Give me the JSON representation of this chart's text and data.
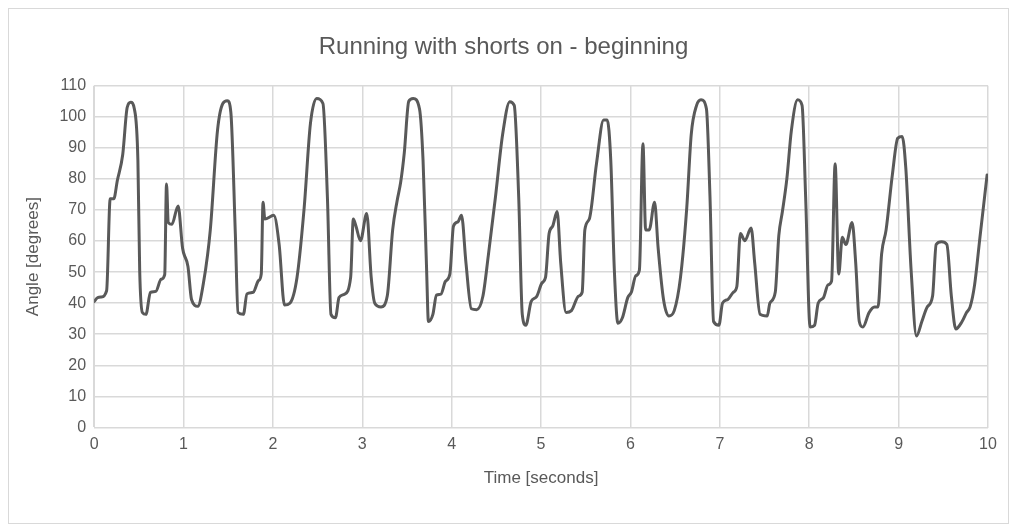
{
  "chart_data": {
    "type": "line",
    "title": "Running with shorts on - beginning",
    "xlabel": "Time [seconds]",
    "ylabel": "Angle [degrees]",
    "x": [
      0,
      0.04,
      0.08,
      0.14,
      0.18,
      0.22,
      0.26,
      0.32,
      0.37,
      0.41,
      0.45,
      0.49,
      0.51,
      0.54,
      0.58,
      0.63,
      0.69,
      0.75,
      0.79,
      0.81,
      0.83,
      0.87,
      0.94,
      0.99,
      1.05,
      1.09,
      1.16,
      1.22,
      1.3,
      1.38,
      1.44,
      1.49,
      1.53,
      1.58,
      1.61,
      1.67,
      1.71,
      1.78,
      1.84,
      1.87,
      1.89,
      1.91,
      2.01,
      2.07,
      2.13,
      2.19,
      2.27,
      2.35,
      2.42,
      2.49,
      2.56,
      2.61,
      2.65,
      2.7,
      2.74,
      2.8,
      2.87,
      2.9,
      2.93,
      2.98,
      3.05,
      3.1,
      3.14,
      3.21,
      3.28,
      3.34,
      3.39,
      3.43,
      3.47,
      3.52,
      3.57,
      3.64,
      3.68,
      3.72,
      3.74,
      3.79,
      3.83,
      3.88,
      3.93,
      3.98,
      4.02,
      4.07,
      4.11,
      4.16,
      4.22,
      4.28,
      4.35,
      4.41,
      4.49,
      4.57,
      4.65,
      4.7,
      4.75,
      4.79,
      4.83,
      4.89,
      4.95,
      5.01,
      5.05,
      5.09,
      5.13,
      5.18,
      5.22,
      5.28,
      5.34,
      5.42,
      5.46,
      5.49,
      5.54,
      5.62,
      5.7,
      5.74,
      5.78,
      5.82,
      5.86,
      5.91,
      5.97,
      6.01,
      6.06,
      6.1,
      6.14,
      6.17,
      6.21,
      6.27,
      6.31,
      6.37,
      6.43,
      6.49,
      6.56,
      6.63,
      6.68,
      6.74,
      6.79,
      6.85,
      6.89,
      6.93,
      6.99,
      7.03,
      7.09,
      7.15,
      7.19,
      7.23,
      7.28,
      7.35,
      7.39,
      7.45,
      7.53,
      7.56,
      7.62,
      7.66,
      7.7,
      7.75,
      7.8,
      7.87,
      7.92,
      7.96,
      8.01,
      8.06,
      8.1,
      8.16,
      8.21,
      8.25,
      8.29,
      8.33,
      8.37,
      8.41,
      8.48,
      8.52,
      8.56,
      8.6,
      8.67,
      8.73,
      8.77,
      8.81,
      8.86,
      8.93,
      8.99,
      9.04,
      9.08,
      9.14,
      9.2,
      9.26,
      9.32,
      9.38,
      9.42,
      9.48,
      9.54,
      9.59,
      9.64,
      9.71,
      9.76,
      9.8,
      9.85,
      9.91,
      9.99
    ],
    "values": [
      40.5,
      41.8,
      42,
      44,
      73.6,
      73.6,
      79.5,
      87.8,
      103,
      104.7,
      102.6,
      86,
      50.6,
      37,
      36.4,
      43.5,
      43.8,
      47.7,
      49.2,
      78.4,
      66,
      65.4,
      71.3,
      57.7,
      51.8,
      41.2,
      39,
      45.9,
      63.6,
      95.5,
      104.3,
      105.2,
      101.4,
      62.4,
      37,
      36.4,
      43,
      43.5,
      47.3,
      49.4,
      72.5,
      67.1,
      68.3,
      58.9,
      39.4,
      40,
      48.3,
      70.7,
      97.8,
      105.9,
      104.3,
      74.2,
      36.4,
      35.3,
      41.8,
      42.9,
      48.3,
      67.1,
      64.8,
      60.1,
      68.9,
      48.3,
      40,
      38.8,
      42.4,
      63.6,
      73,
      79,
      88.4,
      105,
      105.9,
      102.6,
      86,
      50.6,
      34.1,
      36.4,
      42.6,
      42.9,
      47,
      49.4,
      64.8,
      66.2,
      68.3,
      53,
      38.2,
      37.9,
      42.3,
      55.3,
      74.2,
      94.3,
      104.9,
      103.7,
      74.2,
      36.4,
      32.9,
      40.6,
      42.1,
      46.5,
      48.3,
      62.4,
      64.8,
      69.5,
      53,
      37,
      37.6,
      42.3,
      43.5,
      63.6,
      67.1,
      84.9,
      99,
      99,
      86,
      50.6,
      33.5,
      35.3,
      41.8,
      43.5,
      48.8,
      50.6,
      91.3,
      63.6,
      63.6,
      72.5,
      57.7,
      41.2,
      35.9,
      37.6,
      48.3,
      70.7,
      94.3,
      103.7,
      105.5,
      102.6,
      74.2,
      34.1,
      32.9,
      40,
      41.2,
      43.5,
      45.3,
      62.4,
      60.1,
      64.2,
      53,
      36.4,
      35.9,
      40,
      43.5,
      61.8,
      69.5,
      80.1,
      95.5,
      105.5,
      103.7,
      74.2,
      32.3,
      32.9,
      40,
      41.8,
      45.9,
      47.1,
      84.9,
      49.4,
      61.2,
      58.9,
      66,
      53,
      34.1,
      32.3,
      37,
      38.8,
      38.8,
      55.9,
      63.6,
      81.3,
      93.1,
      93.7,
      83.7,
      50.6,
      29.4,
      34.1,
      38.8,
      42.3,
      58.9,
      59.8,
      58.9,
      42.3,
      31.7,
      34.1,
      37,
      38.8,
      45.9,
      61.2,
      81.3
    ],
    "color": "#595959",
    "xlim": [
      0,
      10
    ],
    "xticks": [
      0,
      1,
      2,
      3,
      4,
      5,
      6,
      7,
      8,
      9,
      10
    ],
    "ylim": [
      0,
      110
    ],
    "yticks": [
      0,
      10,
      20,
      30,
      40,
      50,
      60,
      70,
      80,
      90,
      100,
      110
    ],
    "grid": true,
    "legend": false,
    "marker": "none",
    "line_style": "solid"
  }
}
